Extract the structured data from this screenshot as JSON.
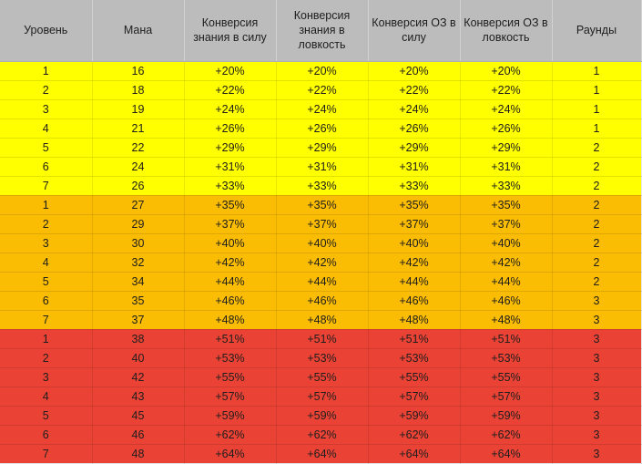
{
  "headers": [
    "Уровень",
    "Мана",
    "Конверсия знания в силу",
    "Конверсия знания в ловкость",
    "Конверсия ОЗ в силу",
    "Конверсия ОЗ в ловкость",
    "Раунды"
  ],
  "colors": {
    "header_bg": "#bcbcbc",
    "tier_1": "#ffff00",
    "tier_2": "#fbbc04",
    "tier_3": "#ea4335"
  },
  "rows": [
    {
      "tier": 1,
      "level": "1",
      "mana": "16",
      "kn_str": "+20%",
      "kn_agi": "+20%",
      "hp_str": "+20%",
      "hp_agi": "+20%",
      "rounds": "1"
    },
    {
      "tier": 1,
      "level": "2",
      "mana": "18",
      "kn_str": "+22%",
      "kn_agi": "+22%",
      "hp_str": "+22%",
      "hp_agi": "+22%",
      "rounds": "1"
    },
    {
      "tier": 1,
      "level": "3",
      "mana": "19",
      "kn_str": "+24%",
      "kn_agi": "+24%",
      "hp_str": "+24%",
      "hp_agi": "+24%",
      "rounds": "1"
    },
    {
      "tier": 1,
      "level": "4",
      "mana": "21",
      "kn_str": "+26%",
      "kn_agi": "+26%",
      "hp_str": "+26%",
      "hp_agi": "+26%",
      "rounds": "1"
    },
    {
      "tier": 1,
      "level": "5",
      "mana": "22",
      "kn_str": "+29%",
      "kn_agi": "+29%",
      "hp_str": "+29%",
      "hp_agi": "+29%",
      "rounds": "2"
    },
    {
      "tier": 1,
      "level": "6",
      "mana": "24",
      "kn_str": "+31%",
      "kn_agi": "+31%",
      "hp_str": "+31%",
      "hp_agi": "+31%",
      "rounds": "2"
    },
    {
      "tier": 1,
      "level": "7",
      "mana": "26",
      "kn_str": "+33%",
      "kn_agi": "+33%",
      "hp_str": "+33%",
      "hp_agi": "+33%",
      "rounds": "2"
    },
    {
      "tier": 2,
      "level": "1",
      "mana": "27",
      "kn_str": "+35%",
      "kn_agi": "+35%",
      "hp_str": "+35%",
      "hp_agi": "+35%",
      "rounds": "2"
    },
    {
      "tier": 2,
      "level": "2",
      "mana": "29",
      "kn_str": "+37%",
      "kn_agi": "+37%",
      "hp_str": "+37%",
      "hp_agi": "+37%",
      "rounds": "2"
    },
    {
      "tier": 2,
      "level": "3",
      "mana": "30",
      "kn_str": "+40%",
      "kn_agi": "+40%",
      "hp_str": "+40%",
      "hp_agi": "+40%",
      "rounds": "2"
    },
    {
      "tier": 2,
      "level": "4",
      "mana": "32",
      "kn_str": "+42%",
      "kn_agi": "+42%",
      "hp_str": "+42%",
      "hp_agi": "+42%",
      "rounds": "2"
    },
    {
      "tier": 2,
      "level": "5",
      "mana": "34",
      "kn_str": "+44%",
      "kn_agi": "+44%",
      "hp_str": "+44%",
      "hp_agi": "+44%",
      "rounds": "2"
    },
    {
      "tier": 2,
      "level": "6",
      "mana": "35",
      "kn_str": "+46%",
      "kn_agi": "+46%",
      "hp_str": "+46%",
      "hp_agi": "+46%",
      "rounds": "3"
    },
    {
      "tier": 2,
      "level": "7",
      "mana": "37",
      "kn_str": "+48%",
      "kn_agi": "+48%",
      "hp_str": "+48%",
      "hp_agi": "+48%",
      "rounds": "3"
    },
    {
      "tier": 3,
      "level": "1",
      "mana": "38",
      "kn_str": "+51%",
      "kn_agi": "+51%",
      "hp_str": "+51%",
      "hp_agi": "+51%",
      "rounds": "3"
    },
    {
      "tier": 3,
      "level": "2",
      "mana": "40",
      "kn_str": "+53%",
      "kn_agi": "+53%",
      "hp_str": "+53%",
      "hp_agi": "+53%",
      "rounds": "3"
    },
    {
      "tier": 3,
      "level": "3",
      "mana": "42",
      "kn_str": "+55%",
      "kn_agi": "+55%",
      "hp_str": "+55%",
      "hp_agi": "+55%",
      "rounds": "3"
    },
    {
      "tier": 3,
      "level": "4",
      "mana": "43",
      "kn_str": "+57%",
      "kn_agi": "+57%",
      "hp_str": "+57%",
      "hp_agi": "+57%",
      "rounds": "3"
    },
    {
      "tier": 3,
      "level": "5",
      "mana": "45",
      "kn_str": "+59%",
      "kn_agi": "+59%",
      "hp_str": "+59%",
      "hp_agi": "+59%",
      "rounds": "3"
    },
    {
      "tier": 3,
      "level": "6",
      "mana": "46",
      "kn_str": "+62%",
      "kn_agi": "+62%",
      "hp_str": "+62%",
      "hp_agi": "+62%",
      "rounds": "3"
    },
    {
      "tier": 3,
      "level": "7",
      "mana": "48",
      "kn_str": "+64%",
      "kn_agi": "+64%",
      "hp_str": "+64%",
      "hp_agi": "+64%",
      "rounds": "3"
    }
  ]
}
